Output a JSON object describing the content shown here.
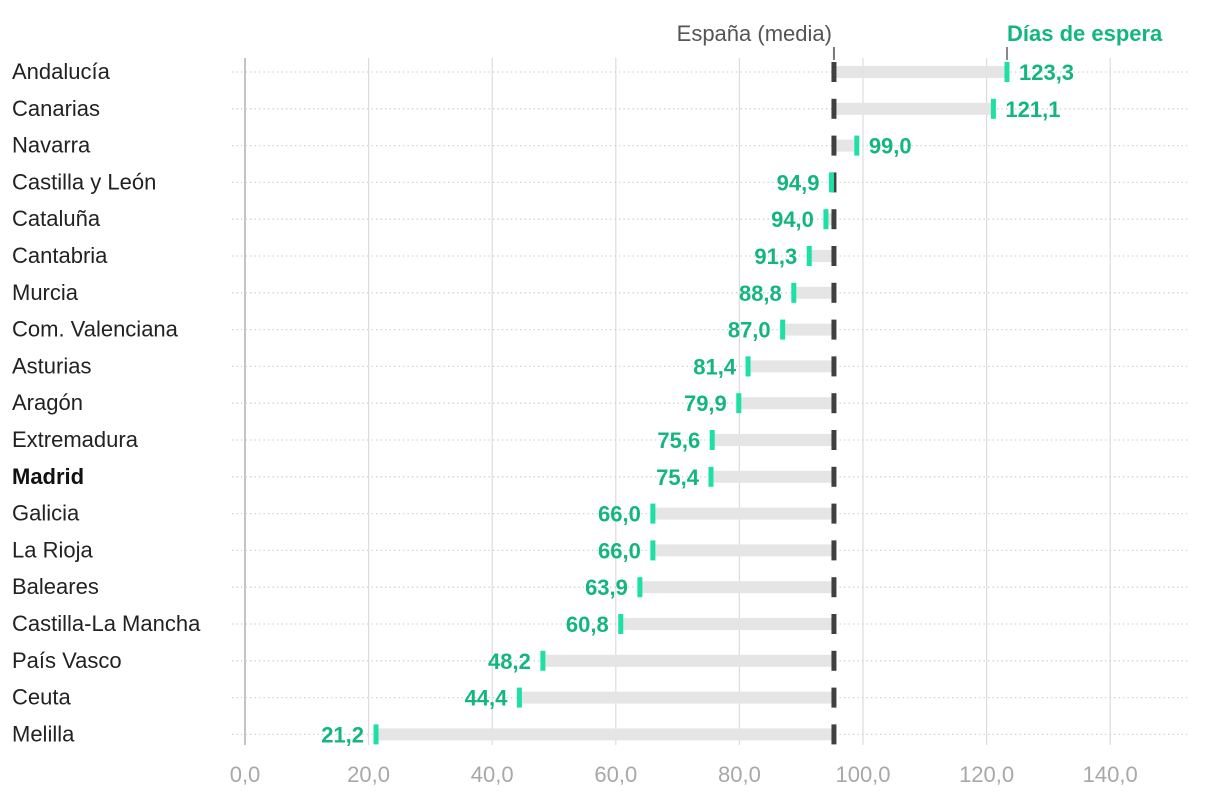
{
  "chart_data": {
    "type": "bar",
    "orientation": "horizontal",
    "reference_label": "España (media)",
    "reference_value": 95.3,
    "value_label": "Días de espera",
    "categories": [
      "Andalucía",
      "Canarias",
      "Navarra",
      "Castilla y León",
      "Cataluña",
      "Cantabria",
      "Murcia",
      "Com. Valenciana",
      "Asturias",
      "Aragón",
      "Extremadura",
      "Madrid",
      "Galicia",
      "La Rioja",
      "Baleares",
      "Castilla-La Mancha",
      "País Vasco",
      "Ceuta",
      "Melilla"
    ],
    "values": [
      123.3,
      121.1,
      99.0,
      94.9,
      94.0,
      91.3,
      88.8,
      87.0,
      81.4,
      79.9,
      75.6,
      75.4,
      66.0,
      66.0,
      63.9,
      60.8,
      48.2,
      44.4,
      21.2
    ],
    "value_labels": [
      "123,3",
      "121,1",
      "99,0",
      "94,9",
      "94,0",
      "91,3",
      "88,8",
      "87,0",
      "81,4",
      "79,9",
      "75,6",
      "75,4",
      "66,0",
      "66,0",
      "63,9",
      "60,8",
      "48,2",
      "44,4",
      "21,2"
    ],
    "highlight": "Madrid",
    "xlim": [
      0,
      150
    ],
    "xticks": [
      0,
      20,
      40,
      60,
      80,
      100,
      120,
      140
    ],
    "xtick_labels": [
      "0,0",
      "20,0",
      "40,0",
      "60,0",
      "80,0",
      "100,0",
      "120,0",
      "140,0"
    ],
    "grid": true,
    "colors": {
      "value": "#13b67f",
      "marker": "#1ce0a4",
      "reference": "#404040",
      "range_bar": "#e5e5e5",
      "grid": "#dcdcdc",
      "tick": "#a8a8a8"
    }
  }
}
